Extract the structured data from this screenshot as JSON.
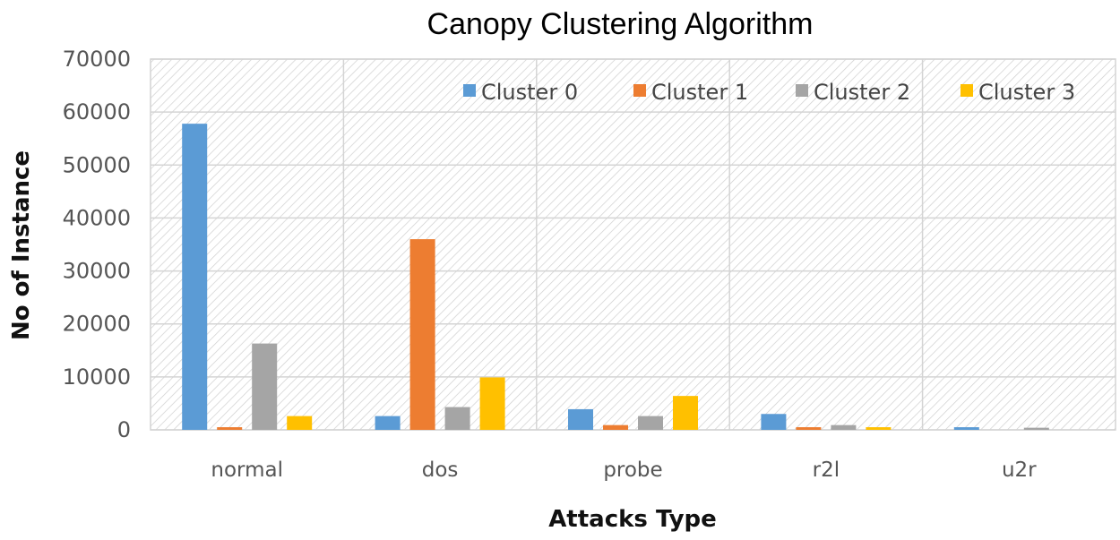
{
  "chart_data": {
    "type": "bar",
    "title": "Canopy Clustering Algorithm",
    "xlabel": "Attacks Type",
    "ylabel": "No of Instance",
    "categories": [
      "normal",
      "dos",
      "probe",
      "r2l",
      "u2r"
    ],
    "ylim": [
      0,
      70000
    ],
    "yticks": [
      0,
      10000,
      20000,
      30000,
      40000,
      50000,
      60000,
      70000
    ],
    "grid": true,
    "legend_position": "top-right",
    "series": [
      {
        "name": "Cluster 0",
        "color": "#5B9BD5",
        "values": [
          57800,
          2600,
          3900,
          3000,
          500
        ]
      },
      {
        "name": "Cluster 1",
        "color": "#ED7D31",
        "values": [
          500,
          36000,
          900,
          500,
          0
        ]
      },
      {
        "name": "Cluster 2",
        "color": "#A5A5A5",
        "values": [
          16300,
          4300,
          2600,
          900,
          400
        ]
      },
      {
        "name": "Cluster 3",
        "color": "#FFC000",
        "values": [
          2600,
          9900,
          6400,
          500,
          0
        ]
      }
    ]
  }
}
